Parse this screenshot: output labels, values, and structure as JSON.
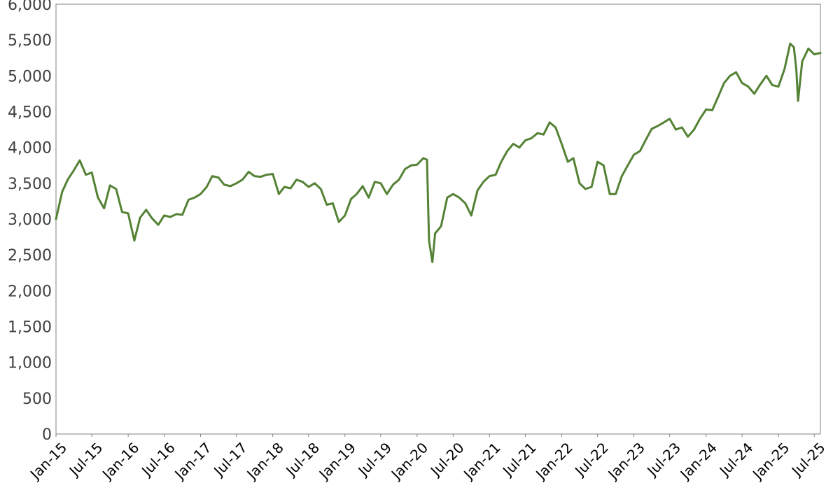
{
  "chart_data": {
    "type": "line",
    "title": "",
    "xlabel": "",
    "ylabel": "",
    "grid": false,
    "legend": "none",
    "line_color": "#548235",
    "xlim": [
      "2015-01-01",
      "2025-08-01"
    ],
    "ylim": [
      0,
      6000
    ],
    "y_ticks": [
      0,
      500,
      1000,
      1500,
      2000,
      2500,
      3000,
      3500,
      4000,
      4500,
      5000,
      5500,
      6000
    ],
    "y_tick_labels": [
      "0",
      "500",
      "1,000",
      "1,500",
      "2,000",
      "2,500",
      "3,000",
      "3,500",
      "4,000",
      "4,500",
      "5,000",
      "5,500",
      "6,000"
    ],
    "x_ticks": [
      "2015-01-01",
      "2015-07-01",
      "2016-01-01",
      "2016-07-01",
      "2017-01-01",
      "2017-07-01",
      "2018-01-01",
      "2018-07-01",
      "2019-01-01",
      "2019-07-01",
      "2020-01-01",
      "2020-07-01",
      "2021-01-01",
      "2021-07-01",
      "2022-01-01",
      "2022-07-01",
      "2023-01-01",
      "2023-07-01",
      "2024-01-01",
      "2024-07-01",
      "2025-01-01",
      "2025-07-01"
    ],
    "x_tick_labels": [
      "Jan-15",
      "Jul-15",
      "Jan-16",
      "Jul-16",
      "Jan-17",
      "Jul-17",
      "Jan-18",
      "Jul-18",
      "Jan-19",
      "Jul-19",
      "Jan-20",
      "Jul-20",
      "Jan-21",
      "Jul-21",
      "Jan-22",
      "Jul-22",
      "Jan-23",
      "Jul-23",
      "Jan-24",
      "Jul-24",
      "Jan-25",
      "Jul-25"
    ],
    "series": [
      {
        "x": [
          "2015-01-01",
          "2015-02-01",
          "2015-03-01",
          "2015-04-01",
          "2015-05-01",
          "2015-06-01",
          "2015-07-01",
          "2015-08-01",
          "2015-09-01",
          "2015-10-01",
          "2015-11-01",
          "2015-12-01",
          "2016-01-01",
          "2016-02-01",
          "2016-03-01",
          "2016-04-01",
          "2016-05-01",
          "2016-06-01",
          "2016-07-01",
          "2016-08-01",
          "2016-09-01",
          "2016-10-01",
          "2016-11-01",
          "2016-12-01",
          "2017-01-01",
          "2017-02-01",
          "2017-03-01",
          "2017-04-01",
          "2017-05-01",
          "2017-06-01",
          "2017-07-01",
          "2017-08-01",
          "2017-09-01",
          "2017-10-01",
          "2017-11-01",
          "2017-12-01",
          "2018-01-01",
          "2018-02-01",
          "2018-03-01",
          "2018-04-01",
          "2018-05-01",
          "2018-06-01",
          "2018-07-01",
          "2018-08-01",
          "2018-09-01",
          "2018-10-01",
          "2018-11-01",
          "2018-12-01",
          "2019-01-01",
          "2019-02-01",
          "2019-03-01",
          "2019-04-01",
          "2019-05-01",
          "2019-06-01",
          "2019-07-01",
          "2019-08-01",
          "2019-09-01",
          "2019-10-01",
          "2019-11-01",
          "2019-12-01",
          "2020-01-01",
          "2020-02-01",
          "2020-02-20",
          "2020-03-01",
          "2020-03-18",
          "2020-04-01",
          "2020-05-01",
          "2020-06-01",
          "2020-07-01",
          "2020-08-01",
          "2020-09-01",
          "2020-10-01",
          "2020-11-01",
          "2020-12-01",
          "2021-01-01",
          "2021-02-01",
          "2021-03-01",
          "2021-04-01",
          "2021-05-01",
          "2021-06-01",
          "2021-07-01",
          "2021-08-01",
          "2021-09-01",
          "2021-10-01",
          "2021-11-01",
          "2021-12-01",
          "2022-01-01",
          "2022-02-01",
          "2022-03-01",
          "2022-04-01",
          "2022-05-01",
          "2022-06-01",
          "2022-07-01",
          "2022-08-01",
          "2022-09-01",
          "2022-10-01",
          "2022-11-01",
          "2022-12-01",
          "2023-01-01",
          "2023-02-01",
          "2023-03-01",
          "2023-04-01",
          "2023-05-01",
          "2023-06-01",
          "2023-07-01",
          "2023-08-01",
          "2023-09-01",
          "2023-10-01",
          "2023-11-01",
          "2023-12-01",
          "2024-01-01",
          "2024-02-01",
          "2024-03-01",
          "2024-04-01",
          "2024-05-01",
          "2024-06-01",
          "2024-07-01",
          "2024-08-01",
          "2024-09-01",
          "2024-10-01",
          "2024-11-01",
          "2024-12-01",
          "2025-01-01",
          "2025-02-01",
          "2025-03-01",
          "2025-03-20",
          "2025-04-01",
          "2025-04-10",
          "2025-05-01",
          "2025-06-01",
          "2025-07-01",
          "2025-08-01"
        ],
        "y": [
          3000,
          3380,
          3550,
          3680,
          3820,
          3620,
          3650,
          3300,
          3150,
          3470,
          3420,
          3100,
          3080,
          2700,
          3020,
          3130,
          3010,
          2920,
          3050,
          3030,
          3070,
          3060,
          3270,
          3300,
          3350,
          3450,
          3600,
          3580,
          3480,
          3460,
          3500,
          3550,
          3660,
          3600,
          3590,
          3620,
          3630,
          3350,
          3450,
          3430,
          3550,
          3520,
          3450,
          3500,
          3420,
          3200,
          3220,
          2960,
          3050,
          3280,
          3350,
          3460,
          3300,
          3520,
          3500,
          3350,
          3480,
          3550,
          3700,
          3750,
          3760,
          3850,
          3830,
          2700,
          2400,
          2800,
          2900,
          3300,
          3350,
          3300,
          3220,
          3050,
          3400,
          3520,
          3600,
          3620,
          3800,
          3950,
          4050,
          4000,
          4100,
          4130,
          4200,
          4180,
          4350,
          4280,
          4050,
          3800,
          3850,
          3500,
          3420,
          3450,
          3800,
          3750,
          3350,
          3350,
          3600,
          3750,
          3900,
          3950,
          4100,
          4260,
          4300,
          4350,
          4400,
          4250,
          4280,
          4150,
          4250,
          4400,
          4530,
          4520,
          4700,
          4900,
          5000,
          5050,
          4900,
          4850,
          4750,
          4880,
          5000,
          4870,
          4850,
          5100,
          5450,
          5400,
          5100,
          4650,
          5200,
          5380,
          5300,
          5320
        ]
      }
    ]
  }
}
